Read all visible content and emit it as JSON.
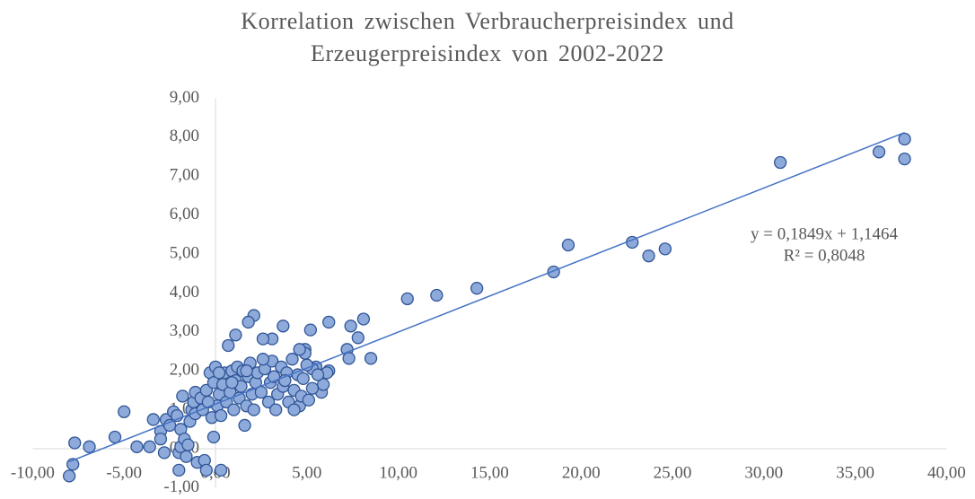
{
  "chart_data": {
    "type": "scatter",
    "title": "Korrelation zwischen Verbraucherpreisindex und Erzeugerpreisindex von 2002-2022",
    "trendline": {
      "slope": 0.1849,
      "intercept": 1.1464,
      "equation": "y = 0,1849x + 1,1464",
      "r2_label": "R² = 0,8048"
    },
    "color": "#8eaadb",
    "edge_color": "#2f5597",
    "line_color": "#4472c4",
    "grid": false,
    "xlim": [
      -10,
      40
    ],
    "xticks": [
      {
        "value": -10,
        "label": "-10,00"
      },
      {
        "value": -5,
        "label": "-5,00"
      },
      {
        "value": 0,
        "label": "0,00"
      },
      {
        "value": 5,
        "label": "5,00"
      },
      {
        "value": 10,
        "label": "10,00"
      },
      {
        "value": 15,
        "label": "15,00"
      },
      {
        "value": 20,
        "label": "20,00"
      },
      {
        "value": 25,
        "label": "25,00"
      },
      {
        "value": 30,
        "label": "30,00"
      },
      {
        "value": 35,
        "label": "35,00"
      },
      {
        "value": 40,
        "label": "40,00"
      }
    ],
    "ylim": [
      -1,
      9
    ],
    "yticks": [
      {
        "value": -1,
        "label": "-1,00"
      },
      {
        "value": 0,
        "label": "0,00"
      },
      {
        "value": 1,
        "label": "1,00"
      },
      {
        "value": 2,
        "label": "2,00"
      },
      {
        "value": 3,
        "label": "3,00"
      },
      {
        "value": 4,
        "label": "4,00"
      },
      {
        "value": 5,
        "label": "5,00"
      },
      {
        "value": 6,
        "label": "6,00"
      },
      {
        "value": 7,
        "label": "7,00"
      },
      {
        "value": 8,
        "label": "8,00"
      },
      {
        "value": 9,
        "label": "9,00"
      }
    ],
    "x": [
      37.7,
      37.7,
      36.3,
      30.9,
      22.8,
      23.7,
      24.6,
      19.3,
      18.5,
      14.3,
      12.1,
      10.5,
      8.5,
      8.1,
      7.8,
      7.4,
      7.2,
      7.3,
      6.2,
      5.2,
      6.2,
      6.1,
      5.8,
      5.9,
      5.5,
      5.3,
      4.9,
      4.9,
      4.6,
      3.7,
      2.1,
      1.8,
      3.1,
      2.6,
      1.1,
      0.7,
      -8,
      -7.8,
      -7.7,
      -6.9,
      -5.5,
      -5.0,
      -4.3,
      -3.6,
      -3.4,
      -3.0,
      -3.0,
      -2.8,
      -2.7,
      -2.5,
      -2.3,
      -2.1,
      -2.0,
      -2.0,
      -1.9,
      -1.9,
      -1.8,
      -1.7,
      -1.6,
      -1.5,
      -1.4,
      -1.3,
      -1.2,
      -1.1,
      -1.1,
      -1.0,
      -0.8,
      -0.7,
      -0.6,
      -0.5,
      -0.5,
      -0.3,
      -0.2,
      -0.1,
      -0.1,
      0.0,
      0.1,
      0.2,
      0.3,
      0.3,
      0.4,
      0.5,
      0.6,
      0.8,
      0.9,
      1.0,
      1.1,
      1.2,
      1.3,
      1.4,
      1.5,
      1.6,
      1.7,
      1.8,
      1.9,
      2.0,
      2.1,
      2.2,
      2.3,
      2.5,
      2.7,
      2.9,
      3.0,
      3.1,
      3.2,
      3.3,
      3.4,
      3.6,
      3.7,
      3.9,
      4.0,
      4.2,
      4.3,
      4.5,
      4.6,
      4.7,
      4.8,
      5.0,
      5.1,
      5.3,
      5.6,
      4.3,
      3.8,
      2.6,
      1.7,
      0.9,
      0.2,
      -0.4
    ],
    "values": [
      7.95,
      7.44,
      7.62,
      7.35,
      5.3,
      4.95,
      5.13,
      5.23,
      4.54,
      4.12,
      3.94,
      3.85,
      2.32,
      3.33,
      2.85,
      3.15,
      2.55,
      2.32,
      3.25,
      3.05,
      2.0,
      1.95,
      1.45,
      1.65,
      2.1,
      2.05,
      2.55,
      2.45,
      2.55,
      3.15,
      3.42,
      3.25,
      2.82,
      2.82,
      2.92,
      2.65,
      -0.7,
      -0.4,
      0.15,
      0.05,
      0.3,
      0.95,
      0.05,
      0.05,
      0.75,
      0.45,
      0.25,
      -0.1,
      0.75,
      0.6,
      0.95,
      0.85,
      -0.55,
      -0.1,
      0.05,
      0.5,
      1.35,
      0.25,
      -0.2,
      0.1,
      0.7,
      1.0,
      1.2,
      0.9,
      1.45,
      -0.35,
      1.3,
      1.0,
      -0.3,
      -0.55,
      1.5,
      1.95,
      0.8,
      0.3,
      1.7,
      2.1,
      1.1,
      1.4,
      -0.55,
      0.85,
      1.65,
      1.95,
      1.2,
      1.45,
      2.0,
      1.0,
      1.75,
      2.1,
      1.3,
      1.6,
      2.0,
      0.6,
      1.1,
      1.85,
      2.2,
      1.4,
      1.0,
      1.7,
      1.95,
      1.45,
      2.05,
      1.2,
      1.7,
      2.25,
      1.85,
      1.0,
      1.4,
      2.1,
      1.6,
      1.95,
      1.2,
      2.3,
      1.5,
      1.9,
      1.1,
      1.35,
      1.8,
      2.15,
      1.25,
      1.55,
      1.9,
      1.0,
      1.75,
      2.3,
      2.0,
      1.7,
      1.95,
      1.2
    ]
  }
}
